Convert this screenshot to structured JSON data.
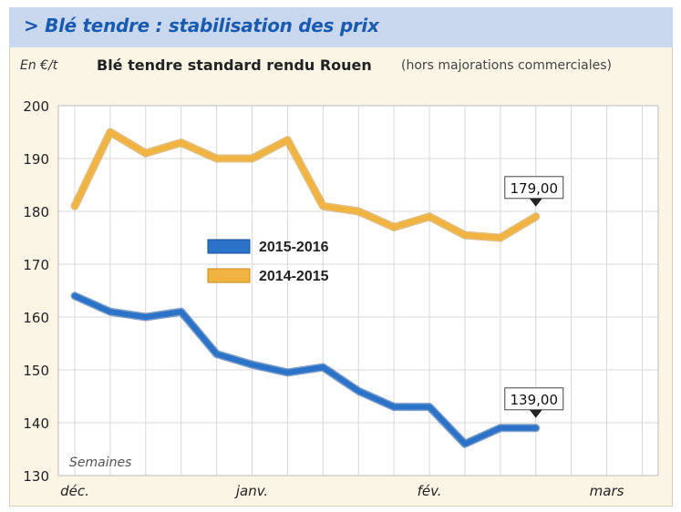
{
  "header": {
    "title": "> Blé tendre : stabilisation des prix"
  },
  "chart_data": {
    "type": "line",
    "title": "Blé tendre standard rendu Rouen",
    "subtitle": "(hors majorations commerciales)",
    "ylabel": "En €/t",
    "xlabel": "Semaines",
    "ylim": [
      130,
      200
    ],
    "yticks": [
      130,
      140,
      150,
      160,
      170,
      180,
      190,
      200
    ],
    "x": [
      1,
      2,
      3,
      4,
      5,
      6,
      7,
      8,
      9,
      10,
      11,
      12,
      13,
      14,
      15,
      16,
      17
    ],
    "x_tick_labels": [
      {
        "label": "déc.",
        "x": 1
      },
      {
        "label": "janv.",
        "x": 6
      },
      {
        "label": "fév.",
        "x": 11
      },
      {
        "label": "mars",
        "x": 16
      }
    ],
    "grid": true,
    "legend_position": "center",
    "series": [
      {
        "name": "2015-2016",
        "color": "#2b73c8",
        "values": [
          164,
          161,
          160,
          161,
          153,
          151,
          149.5,
          150.5,
          146,
          143,
          143,
          136,
          139,
          139
        ],
        "x": [
          1,
          2,
          3,
          4,
          5,
          6,
          7,
          8,
          9,
          10,
          11,
          12,
          13,
          14
        ],
        "annotation": "139,00"
      },
      {
        "name": "2014-2015",
        "color": "#f2b441",
        "values": [
          181,
          195,
          191,
          193,
          190,
          190,
          193.5,
          181,
          180,
          177,
          179,
          175.5,
          175,
          179
        ],
        "x": [
          1,
          2,
          3,
          4,
          5,
          6,
          7,
          8,
          9,
          10,
          11,
          12,
          13,
          14
        ],
        "annotation": "179,00"
      }
    ]
  }
}
